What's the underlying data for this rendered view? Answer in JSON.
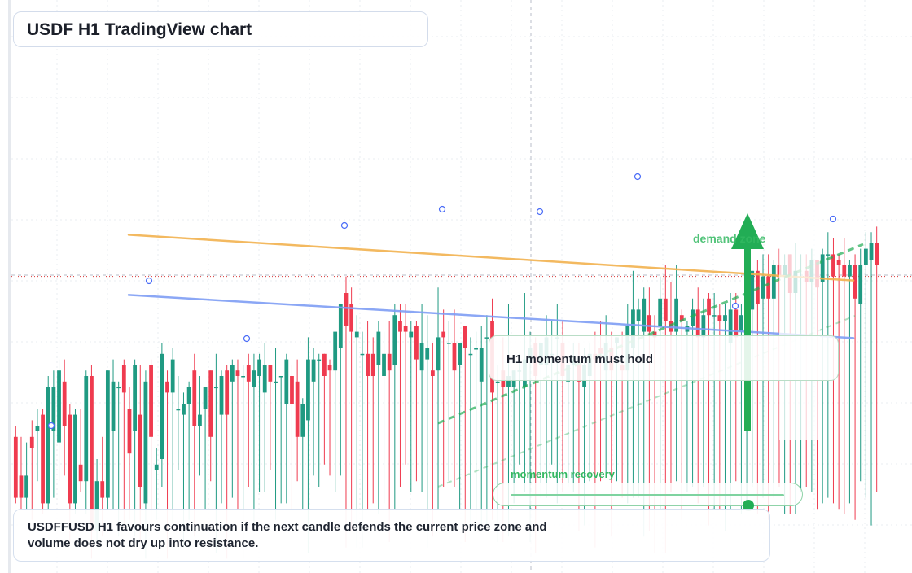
{
  "title": "USDF H1 TradingView chart",
  "callout": "H1 momentum must hold",
  "note": "USDFFUSD H1 favours continuation if the next candle defends the current price zone and volume does not dry up into resistance.",
  "zone_label": "demand zone",
  "slider": {
    "label": "momentum recovery",
    "value": 0.87
  },
  "colors": {
    "up": "#1f9a82",
    "down": "#ef3b4f",
    "trend_orange": "#f2b24f",
    "trend_blue": "#7f9ef5",
    "green": "#22ad55",
    "accent_line": "#d93838"
  },
  "chart_data": {
    "type": "candlestick",
    "title": "USDF H1 TradingView chart",
    "candles": [
      [
        0.24,
        0.13,
        0.26,
        0.12
      ],
      [
        0.17,
        0.13,
        0.24,
        0.11
      ],
      [
        0.13,
        0.17,
        0.23,
        0.11
      ],
      [
        0.24,
        0.22,
        0.27,
        0.09
      ],
      [
        0.25,
        0.26,
        0.29,
        0.16
      ],
      [
        0.28,
        0.12,
        0.29,
        0.1
      ],
      [
        0.12,
        0.33,
        0.35,
        0.11
      ],
      [
        0.25,
        0.33,
        0.36,
        0.13
      ],
      [
        0.23,
        0.36,
        0.38,
        0.16
      ],
      [
        0.34,
        0.26,
        0.38,
        0.17
      ],
      [
        0.28,
        0.12,
        0.3,
        0.05
      ],
      [
        0.12,
        0.28,
        0.29,
        0.1
      ],
      [
        0.19,
        0.16,
        0.29,
        0.14
      ],
      [
        0.16,
        0.35,
        0.36,
        0.1
      ],
      [
        0.35,
        0.07,
        0.37,
        0.02
      ],
      [
        0.07,
        0.16,
        0.2,
        0.05
      ],
      [
        0.16,
        0.13,
        0.24,
        0.06
      ],
      [
        0.13,
        0.36,
        0.36,
        0.11
      ],
      [
        0.25,
        0.34,
        0.38,
        0.11
      ],
      [
        0.33,
        0.33,
        0.34,
        0.06
      ],
      [
        0.37,
        0.32,
        0.38,
        0.07
      ],
      [
        0.29,
        0.21,
        0.33,
        0.09
      ],
      [
        0.25,
        0.37,
        0.38,
        0.06
      ],
      [
        0.28,
        0.15,
        0.37,
        0.05
      ],
      [
        0.12,
        0.34,
        0.36,
        0.02
      ],
      [
        0.37,
        0.24,
        0.38,
        0.06
      ],
      [
        0.18,
        0.19,
        0.22,
        0.09
      ],
      [
        0.2,
        0.39,
        0.41,
        0.15
      ],
      [
        0.34,
        0.32,
        0.36,
        0.02
      ],
      [
        0.32,
        0.38,
        0.4,
        0.08
      ],
      [
        0.29,
        0.29,
        0.35,
        0.18
      ],
      [
        0.28,
        0.3,
        0.32,
        0.04
      ],
      [
        0.3,
        0.33,
        0.34,
        0.09
      ],
      [
        0.36,
        0.26,
        0.39,
        0.06
      ],
      [
        0.26,
        0.28,
        0.35,
        0.17
      ],
      [
        0.29,
        0.33,
        0.33,
        0.11
      ],
      [
        0.36,
        0.24,
        0.36,
        0.16
      ],
      [
        0.33,
        0.33,
        0.39,
        0.03
      ],
      [
        0.28,
        0.35,
        0.36,
        0.12
      ],
      [
        0.36,
        0.28,
        0.37,
        0.02
      ],
      [
        0.34,
        0.37,
        0.38,
        0.13
      ],
      [
        0.36,
        0.35,
        0.38,
        0.11
      ],
      [
        0.35,
        0.35,
        0.37,
        0.02
      ],
      [
        0.37,
        0.34,
        0.39,
        0.15
      ],
      [
        0.33,
        0.36,
        0.39,
        0.07
      ],
      [
        0.35,
        0.38,
        0.39,
        0.14
      ],
      [
        0.32,
        0.37,
        0.41,
        0.14
      ],
      [
        0.37,
        0.34,
        0.37,
        0.18
      ],
      [
        0.34,
        0.34,
        0.4,
        0.09
      ],
      [
        0.35,
        0.35,
        0.35,
        0.12
      ],
      [
        0.3,
        0.38,
        0.39,
        0.12
      ],
      [
        0.35,
        0.3,
        0.37,
        0.09
      ],
      [
        0.34,
        0.24,
        0.38,
        0.16
      ],
      [
        0.24,
        0.3,
        0.31,
        0.11
      ],
      [
        0.27,
        0.38,
        0.42,
        0.03
      ],
      [
        0.34,
        0.38,
        0.4,
        0.17
      ],
      [
        0.38,
        0.38,
        0.39,
        0.15
      ],
      [
        0.39,
        0.35,
        0.39,
        0.19
      ],
      [
        0.37,
        0.36,
        0.38,
        0.17
      ],
      [
        0.36,
        0.43,
        0.43,
        0.14
      ],
      [
        0.4,
        0.48,
        0.48,
        0.17
      ],
      [
        0.5,
        0.44,
        0.53,
        0.04
      ],
      [
        0.48,
        0.43,
        0.51,
        0.07
      ],
      [
        0.42,
        0.43,
        0.46,
        0.04
      ],
      [
        0.39,
        0.39,
        0.43,
        0.04
      ],
      [
        0.39,
        0.35,
        0.45,
        0.11
      ],
      [
        0.39,
        0.35,
        0.42,
        0.12
      ],
      [
        0.37,
        0.43,
        0.45,
        0.1
      ],
      [
        0.35,
        0.39,
        0.43,
        0.12
      ],
      [
        0.39,
        0.36,
        0.45,
        0.05
      ],
      [
        0.37,
        0.46,
        0.48,
        0.11
      ],
      [
        0.45,
        0.43,
        0.48,
        0.15
      ],
      [
        0.44,
        0.43,
        0.48,
        0.19
      ],
      [
        0.42,
        0.43,
        0.45,
        0.14
      ],
      [
        0.44,
        0.38,
        0.45,
        0.16
      ],
      [
        0.36,
        0.41,
        0.48,
        0.14
      ],
      [
        0.38,
        0.4,
        0.46,
        0.04
      ],
      [
        0.36,
        0.35,
        0.41,
        0.06
      ],
      [
        0.36,
        0.42,
        0.51,
        0.11
      ],
      [
        0.43,
        0.42,
        0.47,
        0.15
      ],
      [
        0.41,
        0.41,
        0.45,
        0.16
      ],
      [
        0.41,
        0.36,
        0.47,
        0.15
      ],
      [
        0.37,
        0.41,
        0.41,
        0.11
      ],
      [
        0.44,
        0.4,
        0.44,
        0.05
      ],
      [
        0.39,
        0.39,
        0.42,
        0.08
      ],
      [
        0.4,
        0.4,
        0.43,
        0.07
      ],
      [
        0.34,
        0.4,
        0.44,
        0.08
      ],
      [
        0.42,
        0.42,
        0.46,
        0.08
      ],
      [
        0.45,
        0.32,
        0.49,
        0.09
      ],
      [
        0.34,
        0.34,
        0.37,
        0.05
      ],
      [
        0.36,
        0.33,
        0.42,
        0.05
      ],
      [
        0.33,
        0.35,
        0.48,
        0.06
      ],
      [
        0.33,
        0.36,
        0.36,
        0.12
      ],
      [
        0.36,
        0.36,
        0.39,
        0.19
      ],
      [
        0.33,
        0.38,
        0.5,
        0.14
      ],
      [
        0.38,
        0.4,
        0.43,
        0.05
      ],
      [
        0.41,
        0.35,
        0.42,
        0.03
      ],
      [
        0.37,
        0.41,
        0.41,
        0.13
      ],
      [
        0.37,
        0.42,
        0.46,
        0.13
      ],
      [
        0.39,
        0.39,
        0.45,
        0.19
      ],
      [
        0.42,
        0.42,
        0.48,
        0.12
      ],
      [
        0.41,
        0.35,
        0.45,
        0.14
      ],
      [
        0.34,
        0.37,
        0.37,
        0.15
      ],
      [
        0.37,
        0.38,
        0.41,
        0.14
      ],
      [
        0.37,
        0.34,
        0.41,
        0.07
      ],
      [
        0.33,
        0.37,
        0.4,
        0.08
      ],
      [
        0.35,
        0.39,
        0.41,
        0.16
      ],
      [
        0.39,
        0.38,
        0.43,
        0.04
      ],
      [
        0.4,
        0.39,
        0.45,
        0.16
      ],
      [
        0.36,
        0.41,
        0.46,
        0.17
      ],
      [
        0.4,
        0.36,
        0.43,
        0.06
      ],
      [
        0.41,
        0.42,
        0.42,
        0.16
      ],
      [
        0.37,
        0.36,
        0.43,
        0.13
      ],
      [
        0.36,
        0.44,
        0.48,
        0.12
      ],
      [
        0.4,
        0.47,
        0.54,
        0.13
      ],
      [
        0.45,
        0.47,
        0.49,
        0.13
      ],
      [
        0.43,
        0.49,
        0.51,
        0.06
      ],
      [
        0.46,
        0.43,
        0.51,
        0.07
      ],
      [
        0.43,
        0.42,
        0.46,
        0.03
      ],
      [
        0.44,
        0.49,
        0.53,
        0.11
      ],
      [
        0.49,
        0.45,
        0.55,
        0.03
      ],
      [
        0.45,
        0.43,
        0.52,
        0.14
      ],
      [
        0.43,
        0.49,
        0.55,
        0.16
      ],
      [
        0.46,
        0.45,
        0.47,
        0.09
      ],
      [
        0.43,
        0.44,
        0.45,
        0.14
      ],
      [
        0.44,
        0.47,
        0.49,
        0.15
      ],
      [
        0.47,
        0.42,
        0.51,
        0.12
      ],
      [
        0.42,
        0.46,
        0.49,
        0.15
      ],
      [
        0.49,
        0.46,
        0.5,
        0.08
      ],
      [
        0.46,
        0.46,
        0.5,
        0.11
      ],
      [
        0.46,
        0.45,
        0.48,
        0.11
      ],
      [
        0.45,
        0.46,
        0.48,
        0.07
      ],
      [
        0.41,
        0.47,
        0.5,
        0.11
      ],
      [
        0.47,
        0.42,
        0.5,
        0.16
      ],
      [
        0.43,
        0.46,
        0.48,
        0.1
      ],
      [
        0.45,
        0.49,
        0.49,
        0.12
      ],
      [
        0.47,
        0.54,
        0.54,
        0.15
      ],
      [
        0.54,
        0.48,
        0.56,
        0.1
      ],
      [
        0.49,
        0.53,
        0.57,
        0.13
      ],
      [
        0.53,
        0.49,
        0.57,
        0.09
      ],
      [
        0.49,
        0.55,
        0.56,
        0.13
      ],
      [
        0.55,
        0.53,
        0.58,
        0.15
      ],
      [
        0.53,
        0.55,
        0.57,
        0.1
      ],
      [
        0.57,
        0.5,
        0.57,
        0.1
      ],
      [
        0.5,
        0.54,
        0.59,
        0.1
      ],
      [
        0.53,
        0.53,
        0.57,
        0.14
      ],
      [
        0.54,
        0.52,
        0.57,
        0.15
      ],
      [
        0.52,
        0.56,
        0.58,
        0.14
      ],
      [
        0.56,
        0.51,
        0.56,
        0.11
      ],
      [
        0.52,
        0.57,
        0.58,
        0.12
      ],
      [
        0.57,
        0.57,
        0.61,
        0.13
      ],
      [
        0.57,
        0.53,
        0.6,
        0.12
      ],
      [
        0.56,
        0.55,
        0.57,
        0.11
      ],
      [
        0.55,
        0.53,
        0.6,
        0.1
      ],
      [
        0.53,
        0.55,
        0.56,
        0.12
      ],
      [
        0.55,
        0.49,
        0.57,
        0.09
      ],
      [
        0.48,
        0.55,
        0.58,
        0.16
      ],
      [
        0.55,
        0.58,
        0.61,
        0.13
      ],
      [
        0.56,
        0.59,
        0.61,
        0.08
      ],
      [
        0.59,
        0.55,
        0.62,
        0.14
      ]
    ],
    "trendlines": [
      {
        "name": "orange-trendline",
        "from": [
          0.0,
          0.12
        ],
        "to": [
          0.97,
          0.28
        ]
      },
      {
        "name": "blue-trendline",
        "from": [
          0.0,
          0.07
        ],
        "to": [
          0.97,
          0.22
        ]
      }
    ],
    "hlines": [
      0.53
    ],
    "markers": [
      0.2,
      0.33,
      0.45,
      0.57,
      0.69,
      0.82,
      0.95
    ],
    "ylim": [
      0.0,
      1.0
    ],
    "grid": true
  }
}
